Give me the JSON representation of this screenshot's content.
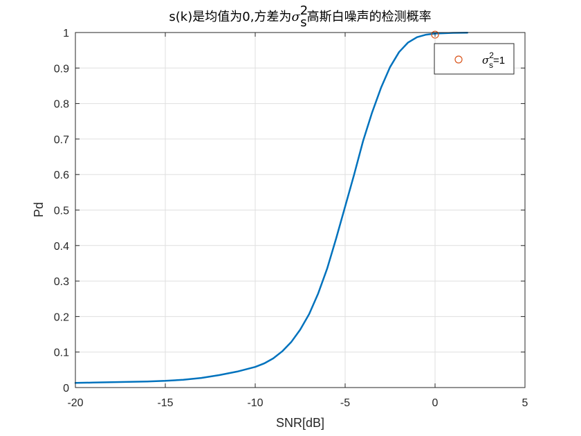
{
  "chart_data": {
    "type": "line",
    "title": {
      "prefix": "s(k)是均值为0,方差为",
      "symbol": "σ",
      "symbol_sub": "s",
      "symbol_sup": "2",
      "suffix": "高斯白噪声的检测概率"
    },
    "xlabel": "SNR[dB]",
    "ylabel": "Pd",
    "xlim": [
      -20,
      5
    ],
    "ylim": [
      0,
      1
    ],
    "xticks": [
      -20,
      -15,
      -10,
      -5,
      0,
      5
    ],
    "yticks": [
      0,
      0.1,
      0.2,
      0.3,
      0.4,
      0.5,
      0.6,
      0.7,
      0.8,
      0.9,
      1
    ],
    "grid": true,
    "legend": {
      "placement": "top-right",
      "entries": [
        {
          "symbol": "σ",
          "sub": "s",
          "sup": "2",
          "text": "=1",
          "marker": "circle"
        }
      ]
    },
    "series": [
      {
        "style": "line",
        "color": "#0072BD",
        "x": [
          -20,
          -19,
          -18,
          -17,
          -16,
          -15,
          -14,
          -13,
          -12,
          -11,
          -10,
          -9.5,
          -9,
          -8.5,
          -8,
          -7.5,
          -7,
          -6.5,
          -6,
          -5.5,
          -5,
          -4.5,
          -4,
          -3.5,
          -3,
          -2.5,
          -2,
          -1.5,
          -1,
          -0.5,
          0,
          0.5,
          1,
          1.8
        ],
        "y": [
          0.013,
          0.014,
          0.015,
          0.016,
          0.017,
          0.019,
          0.022,
          0.027,
          0.035,
          0.045,
          0.058,
          0.068,
          0.082,
          0.102,
          0.128,
          0.163,
          0.207,
          0.265,
          0.335,
          0.42,
          0.51,
          0.6,
          0.695,
          0.775,
          0.845,
          0.903,
          0.945,
          0.972,
          0.987,
          0.994,
          0.997,
          0.998,
          0.999,
          0.9995
        ]
      },
      {
        "style": "marker",
        "color": "#D95319",
        "x": [
          0
        ],
        "y": [
          0.994
        ]
      }
    ]
  }
}
